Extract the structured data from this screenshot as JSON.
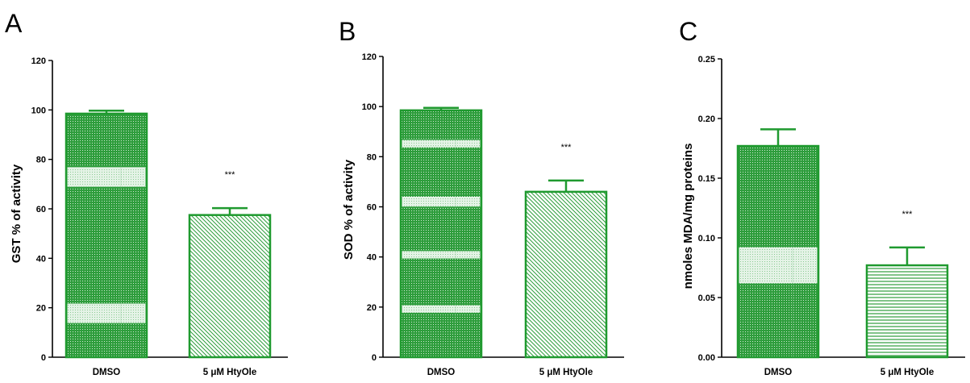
{
  "colors": {
    "bar_stroke": "#1f9a2f",
    "bar_fill": "#2e9d3c",
    "axis": "#000000"
  },
  "chart_data": [
    {
      "type": "bar",
      "panel_label": "A",
      "categories": [
        "DMSO",
        "5 μM HtyOle"
      ],
      "values": [
        98.5,
        57.5
      ],
      "errors": [
        1.2,
        2.8
      ],
      "annotations": [
        "",
        "***"
      ],
      "ylabel": "GST % of activity",
      "ylim": [
        0,
        120
      ],
      "yticks": [
        0,
        20,
        40,
        60,
        80,
        100,
        120
      ],
      "ytick_labels": [
        "0",
        "20",
        "40",
        "60",
        "80",
        "100",
        "120"
      ],
      "patterns": [
        "dense-crosshatch",
        "diagonal"
      ]
    },
    {
      "type": "bar",
      "panel_label": "B",
      "categories": [
        "DMSO",
        "5 μM HtyOle"
      ],
      "values": [
        98.5,
        66.0
      ],
      "errors": [
        1.0,
        4.5
      ],
      "annotations": [
        "",
        "***"
      ],
      "ylabel": "SOD % of activity",
      "ylim": [
        0,
        120
      ],
      "yticks": [
        0,
        20,
        40,
        60,
        80,
        100,
        120
      ],
      "ytick_labels": [
        "0",
        "20",
        "40",
        "60",
        "80",
        "100",
        "120"
      ],
      "patterns": [
        "dense-crosshatch",
        "diagonal"
      ]
    },
    {
      "type": "bar",
      "panel_label": "C",
      "categories": [
        "DMSO",
        "5 μM HtyOle"
      ],
      "values": [
        0.177,
        0.077
      ],
      "errors": [
        0.014,
        0.015
      ],
      "annotations": [
        "",
        "***"
      ],
      "ylabel": "nmoles MDA/mg proteins",
      "ylim": [
        0,
        0.25
      ],
      "yticks": [
        0,
        0.05,
        0.1,
        0.15,
        0.2,
        0.25
      ],
      "ytick_labels": [
        "0.00",
        "0.05",
        "0.10",
        "0.15",
        "0.20",
        "0.25"
      ],
      "patterns": [
        "dense-crosshatch",
        "horizontal"
      ]
    }
  ]
}
